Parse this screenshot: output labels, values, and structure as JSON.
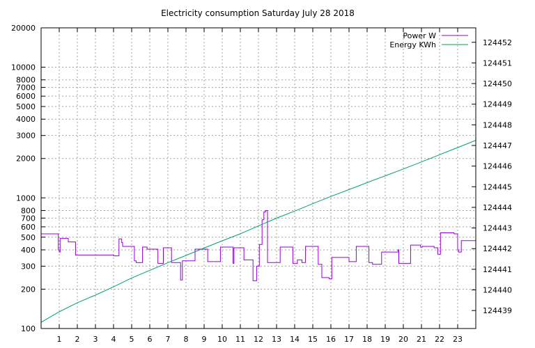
{
  "chart_data": {
    "type": "line",
    "title": "Electricity consumption Saturday July 28 2018",
    "xlabel": "",
    "ylabel": "",
    "y2label": "",
    "xlim": [
      0,
      24
    ],
    "x_ticks": [
      1,
      2,
      3,
      4,
      5,
      6,
      7,
      8,
      9,
      10,
      11,
      12,
      13,
      14,
      15,
      16,
      17,
      18,
      19,
      20,
      21,
      22,
      23
    ],
    "ylim": [
      100,
      20000
    ],
    "y_scale": "log",
    "y_ticks": [
      {
        "value": 100,
        "label": "100"
      },
      {
        "value": 200,
        "label": "200"
      },
      {
        "value": 300,
        "label": "300"
      },
      {
        "value": 400,
        "label": "400"
      },
      {
        "value": 500,
        "label": "500"
      },
      {
        "value": 600,
        "label": "600"
      },
      {
        "value": 700,
        "label": "700"
      },
      {
        "value": 800,
        "label": "800"
      },
      {
        "value": 1000,
        "label": "1000"
      },
      {
        "value": 2000,
        "label": "2000"
      },
      {
        "value": 3000,
        "label": "3000"
      },
      {
        "value": 4000,
        "label": "4000"
      },
      {
        "value": 5000,
        "label": "5000"
      },
      {
        "value": 6000,
        "label": "6000"
      },
      {
        "value": 7000,
        "label": "7000"
      },
      {
        "value": 8000,
        "label": "8000"
      },
      {
        "value": 10000,
        "label": "10000"
      },
      {
        "value": 20000,
        "label": "20000"
      }
    ],
    "y2_scale": "log",
    "y2_ticks": [
      124439,
      124440,
      124441,
      124442,
      124443,
      124444,
      124445,
      124446,
      124447,
      124448,
      124449,
      124450,
      124451,
      124452
    ],
    "grid": true,
    "legend_position": "top-right",
    "series": [
      {
        "name": "Power W",
        "axis": "left",
        "color": "#9400d3",
        "step": true,
        "x": [
          0,
          0.95,
          1.0,
          1.05,
          1.1,
          1.5,
          1.9,
          4.0,
          4.3,
          4.45,
          4.5,
          5.15,
          5.25,
          5.6,
          5.85,
          6.45,
          6.75,
          7.2,
          7.7,
          7.8,
          8.5,
          9.2,
          9.9,
          10.6,
          10.65,
          11.2,
          11.7,
          11.9,
          12.05,
          12.2,
          12.3,
          12.4,
          12.5,
          13.2,
          13.9,
          14.15,
          14.4,
          14.6,
          15.3,
          15.5,
          15.9,
          16.05,
          17.0,
          17.4,
          18.1,
          18.3,
          18.8,
          19.7,
          19.75,
          20.4,
          20.95,
          21.05,
          21.7,
          21.9,
          22.05,
          22.8,
          23.0,
          23.05,
          23.2,
          24.0
        ],
        "y": [
          530,
          400,
          385,
          490,
          490,
          460,
          365,
          360,
          485,
          455,
          425,
          330,
          320,
          420,
          405,
          315,
          415,
          320,
          235,
          330,
          405,
          325,
          420,
          315,
          415,
          335,
          232,
          300,
          440,
          680,
          780,
          800,
          320,
          420,
          315,
          335,
          320,
          425,
          310,
          245,
          240,
          350,
          325,
          425,
          320,
          310,
          385,
          400,
          315,
          435,
          420,
          425,
          415,
          370,
          540,
          530,
          400,
          385,
          470,
          465
        ]
      },
      {
        "name": "Energy KWh",
        "axis": "right",
        "color": "#009e73",
        "step": false,
        "x": [
          0,
          1,
          2,
          3,
          4,
          5,
          6,
          7,
          8,
          9,
          10,
          11,
          12,
          13,
          14,
          15,
          16,
          17,
          18,
          19,
          20,
          21,
          22,
          23,
          24
        ],
        "y": [
          124438.43,
          124438.94,
          124439.38,
          124439.75,
          124440.15,
          124440.58,
          124440.95,
          124441.32,
          124441.67,
          124442.03,
          124442.38,
          124442.72,
          124443.1,
          124443.48,
          124443.82,
          124444.18,
          124444.53,
          124444.86,
          124445.2,
          124445.53,
          124445.86,
          124446.2,
          124446.55,
          124446.9,
          124447.25
        ]
      }
    ]
  }
}
